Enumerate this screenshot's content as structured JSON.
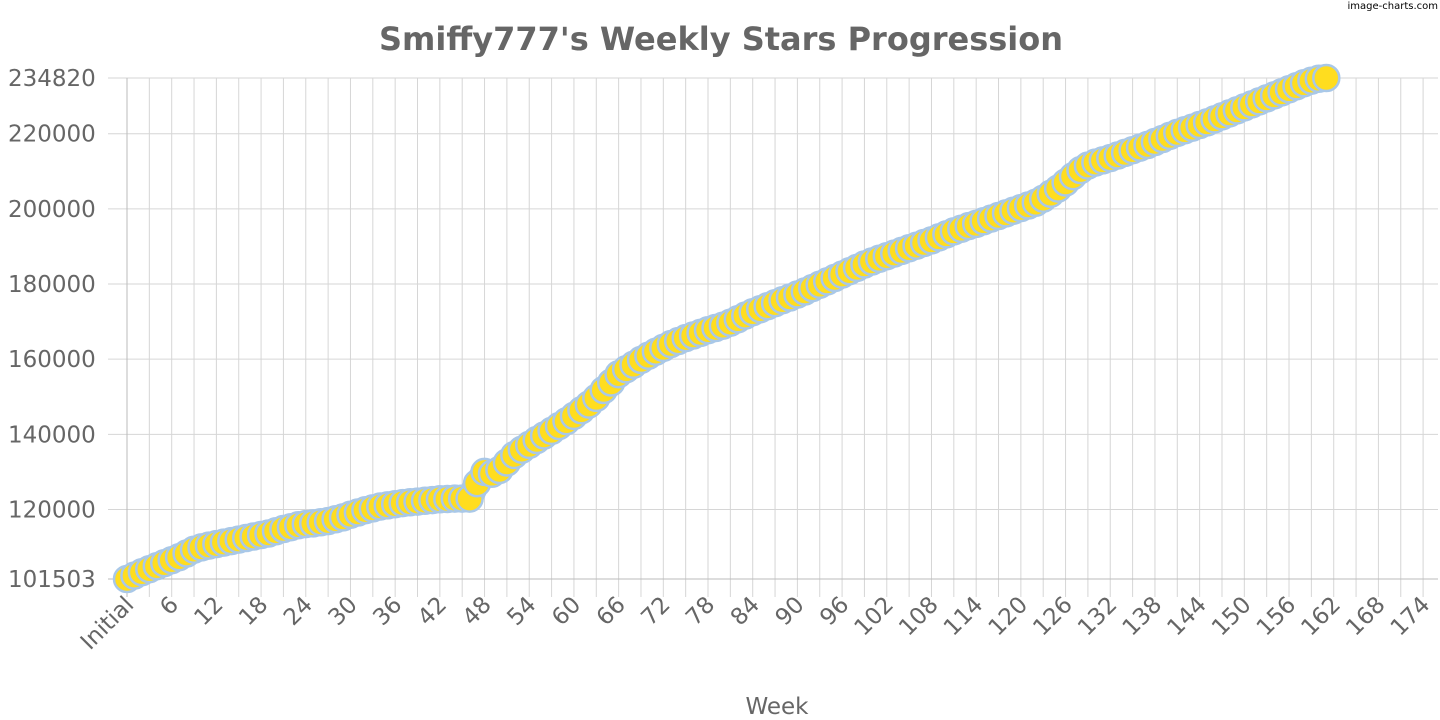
{
  "watermark": "image-charts.com",
  "colors": {
    "point_fill": "#FFDD1F",
    "point_stroke": "#A9C8E8",
    "grid": "#d6d6d6",
    "text": "#666666"
  },
  "chart_data": {
    "type": "line",
    "title": "Smiffy777's Weekly Stars Progression",
    "xlabel": "Week",
    "ylabel": "",
    "grid": true,
    "legend": "none",
    "ylim": [
      101503,
      234820
    ],
    "y_ticks": [
      "101503",
      "120000",
      "140000",
      "160000",
      "180000",
      "200000",
      "220000",
      "234820"
    ],
    "x_tick_labels": [
      "Initial",
      "6",
      "12",
      "18",
      "24",
      "30",
      "36",
      "42",
      "48",
      "54",
      "60",
      "66",
      "72",
      "78",
      "84",
      "90",
      "96",
      "102",
      "108",
      "114",
      "120",
      "126",
      "132",
      "138",
      "144",
      "150",
      "156",
      "162",
      "168",
      "174"
    ],
    "week_range": [
      0,
      176
    ],
    "series": [
      {
        "values": [
          101503,
          102400,
          103300,
          104100,
          104900,
          105700,
          106500,
          107300,
          108300,
          109300,
          109900,
          110400,
          110800,
          111200,
          111600,
          112000,
          112400,
          112800,
          113200,
          113600,
          114200,
          114800,
          115300,
          115800,
          116100,
          116300,
          116600,
          116900,
          117400,
          117900,
          118600,
          119200,
          119800,
          120300,
          120800,
          121100,
          121400,
          121700,
          121900,
          122100,
          122300,
          122500,
          122700,
          122800,
          122900,
          122900,
          122900,
          127000,
          130000,
          129500,
          130500,
          132500,
          134500,
          135900,
          137200,
          138500,
          139700,
          140900,
          142200,
          143500,
          144900,
          146400,
          147900,
          149700,
          151800,
          153800,
          156000,
          157300,
          158500,
          159800,
          160900,
          162000,
          163000,
          164000,
          164800,
          165600,
          166300,
          167000,
          167700,
          168300,
          168900,
          169700,
          170600,
          171600,
          172500,
          173300,
          174100,
          174900,
          175700,
          176400,
          177200,
          178000,
          178900,
          179800,
          180700,
          181600,
          182500,
          183400,
          184300,
          185200,
          186000,
          186700,
          187400,
          188100,
          188800,
          189500,
          190200,
          190900,
          191600,
          192400,
          193200,
          194000,
          194700,
          195400,
          196000,
          196700,
          197400,
          198100,
          198800,
          199500,
          200200,
          200900,
          201600,
          202700,
          204000,
          205400,
          207000,
          208700,
          210300,
          211500,
          212300,
          212900,
          213500,
          214200,
          214900,
          215600,
          216300,
          217000,
          217800,
          218600,
          219400,
          220200,
          220900,
          221600,
          222300,
          223000,
          223800,
          224600,
          225400,
          226200,
          227000,
          227800,
          228600,
          229400,
          230200,
          231000,
          231800,
          232600,
          233400,
          234100,
          234600,
          234820
        ]
      }
    ]
  }
}
